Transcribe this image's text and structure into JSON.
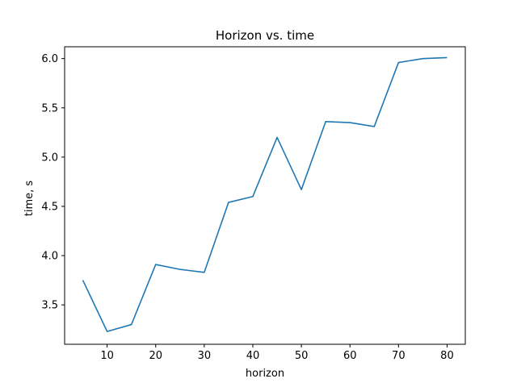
{
  "chart_data": {
    "type": "line",
    "title": "Horizon vs. time",
    "xlabel": "horizon",
    "ylabel": "time, s",
    "xlim": [
      1.25,
      83.75
    ],
    "ylim": [
      3.1,
      6.12
    ],
    "xticks": [
      10,
      20,
      30,
      40,
      50,
      60,
      70,
      80
    ],
    "yticks": [
      3.5,
      4.0,
      4.5,
      5.0,
      5.5,
      6.0
    ],
    "ytick_labels": [
      "3.5",
      "4.0",
      "4.5",
      "5.0",
      "5.5",
      "6.0"
    ],
    "grid": false,
    "series": [
      {
        "color": "#1f77b4",
        "x": [
          5,
          10,
          15,
          20,
          25,
          30,
          35,
          40,
          45,
          50,
          55,
          60,
          65,
          70,
          75,
          80
        ],
        "y": [
          3.75,
          3.23,
          3.3,
          3.91,
          3.86,
          3.83,
          4.54,
          4.6,
          5.2,
          4.67,
          5.36,
          5.35,
          5.31,
          5.96,
          6.0,
          6.01
        ]
      }
    ]
  }
}
